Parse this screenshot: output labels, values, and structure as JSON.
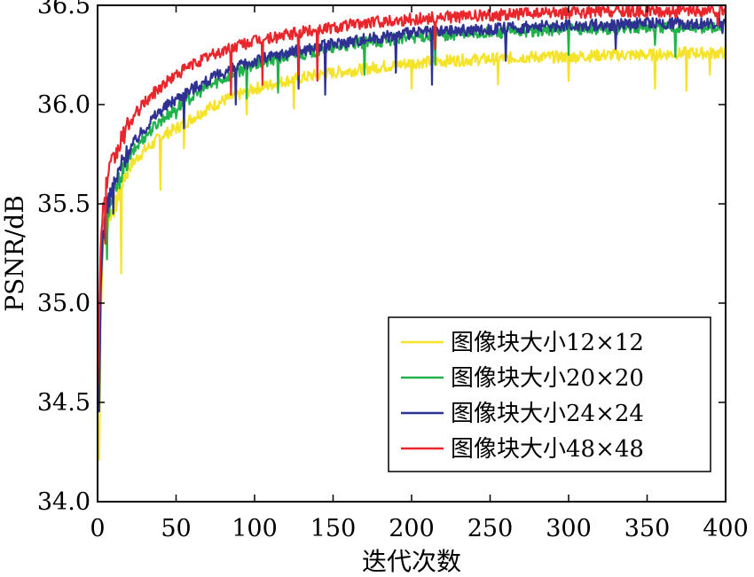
{
  "chart_data": {
    "type": "line",
    "title": "",
    "xlabel": "迭代次数",
    "ylabel": "PSNR/dB",
    "xlim": [
      0,
      400
    ],
    "ylim": [
      34.0,
      36.5
    ],
    "xticks": [
      0,
      50,
      100,
      150,
      200,
      250,
      300,
      350,
      400
    ],
    "xtick_labels": [
      "0",
      "50",
      "100",
      "150",
      "200",
      "250",
      "300",
      "350",
      "400"
    ],
    "yticks": [
      34.0,
      34.5,
      35.0,
      35.5,
      36.0,
      36.5
    ],
    "ytick_labels": [
      "34.0",
      "34.5",
      "35.0",
      "35.5",
      "36.0",
      "36.5"
    ],
    "grid": false,
    "legend_position": "bottom-right",
    "series": [
      {
        "name": "图像块大小12×12",
        "color": "#f5e32a",
        "x": [
          0,
          1,
          2,
          3,
          5,
          8,
          12,
          15,
          20,
          25,
          30,
          35,
          40,
          45,
          50,
          60,
          70,
          80,
          90,
          100,
          120,
          140,
          160,
          180,
          200,
          220,
          250,
          275,
          300,
          325,
          350,
          375,
          400
        ],
        "y": [
          34.4,
          34.25,
          34.9,
          35.2,
          35.4,
          35.45,
          35.5,
          35.6,
          35.68,
          35.73,
          35.77,
          35.8,
          35.84,
          35.86,
          35.88,
          35.93,
          35.98,
          36.02,
          36.05,
          36.08,
          36.12,
          36.15,
          36.17,
          36.19,
          36.21,
          36.22,
          36.23,
          36.24,
          36.24,
          36.25,
          36.25,
          36.26,
          36.26
        ],
        "dips": [
          [
            15,
            35.15
          ],
          [
            40,
            35.57
          ],
          [
            55,
            35.78
          ],
          [
            95,
            35.95
          ],
          [
            125,
            35.98
          ],
          [
            200,
            36.08
          ],
          [
            255,
            36.1
          ],
          [
            300,
            36.12
          ],
          [
            355,
            36.08
          ],
          [
            375,
            36.07
          ],
          [
            390,
            36.15
          ]
        ]
      },
      {
        "name": "图像块大小20×20",
        "color": "#22b24c",
        "x": [
          0,
          1,
          2,
          3,
          5,
          8,
          12,
          15,
          20,
          25,
          30,
          35,
          40,
          45,
          50,
          60,
          70,
          80,
          90,
          100,
          120,
          140,
          160,
          180,
          200,
          220,
          250,
          275,
          300,
          325,
          350,
          375,
          400
        ],
        "y": [
          34.5,
          34.6,
          35.05,
          35.25,
          35.4,
          35.5,
          35.58,
          35.65,
          35.73,
          35.79,
          35.84,
          35.88,
          35.92,
          35.95,
          35.98,
          36.04,
          36.09,
          36.13,
          36.17,
          36.2,
          36.24,
          36.27,
          36.3,
          36.32,
          36.34,
          36.35,
          36.36,
          36.37,
          36.38,
          36.38,
          36.39,
          36.39,
          36.39
        ],
        "dips": [
          [
            6,
            35.22
          ],
          [
            50,
            35.93
          ],
          [
            95,
            36.03
          ],
          [
            115,
            36.06
          ],
          [
            170,
            36.15
          ],
          [
            215,
            36.2
          ],
          [
            300,
            36.25
          ],
          [
            355,
            36.3
          ],
          [
            368,
            36.24
          ]
        ]
      },
      {
        "name": "图像块大小24×24",
        "color": "#2e3192",
        "x": [
          0,
          1,
          2,
          3,
          5,
          8,
          12,
          15,
          20,
          25,
          30,
          35,
          40,
          45,
          50,
          60,
          70,
          80,
          90,
          100,
          120,
          140,
          160,
          180,
          200,
          220,
          250,
          275,
          300,
          325,
          350,
          375,
          400
        ],
        "y": [
          34.5,
          34.45,
          35.1,
          35.3,
          35.45,
          35.55,
          35.62,
          35.7,
          35.77,
          35.83,
          35.88,
          35.93,
          35.97,
          36.0,
          36.03,
          36.08,
          36.12,
          36.16,
          36.19,
          36.22,
          36.26,
          36.29,
          36.32,
          36.34,
          36.36,
          36.37,
          36.38,
          36.39,
          36.4,
          36.4,
          36.41,
          36.41,
          36.41
        ],
        "dips": [
          [
            10,
            35.45
          ],
          [
            55,
            35.88
          ],
          [
            88,
            36.0
          ],
          [
            128,
            36.08
          ],
          [
            145,
            36.05
          ],
          [
            190,
            36.16
          ],
          [
            213,
            36.1
          ],
          [
            260,
            36.22
          ],
          [
            330,
            36.28
          ],
          [
            398,
            36.36
          ]
        ]
      },
      {
        "name": "图像块大小48×48",
        "color": "#e8262c",
        "x": [
          0,
          1,
          2,
          3,
          5,
          8,
          12,
          15,
          20,
          25,
          30,
          35,
          40,
          45,
          50,
          60,
          70,
          80,
          90,
          100,
          120,
          140,
          160,
          180,
          200,
          220,
          250,
          275,
          300,
          325,
          350,
          375,
          400
        ],
        "y": [
          34.6,
          34.9,
          35.3,
          35.45,
          35.58,
          35.68,
          35.75,
          35.82,
          35.9,
          35.96,
          36.01,
          36.05,
          36.09,
          36.12,
          36.15,
          36.2,
          36.24,
          36.27,
          36.3,
          36.32,
          36.35,
          36.38,
          36.4,
          36.42,
          36.43,
          36.44,
          36.45,
          36.46,
          36.46,
          36.47,
          36.47,
          36.47,
          36.47
        ],
        "dips": [
          [
            5,
            35.3
          ],
          [
            85,
            36.05
          ],
          [
            105,
            36.1
          ],
          [
            128,
            36.15
          ],
          [
            140,
            36.12
          ],
          [
            215,
            36.28
          ],
          [
            395,
            36.4
          ]
        ]
      }
    ]
  }
}
